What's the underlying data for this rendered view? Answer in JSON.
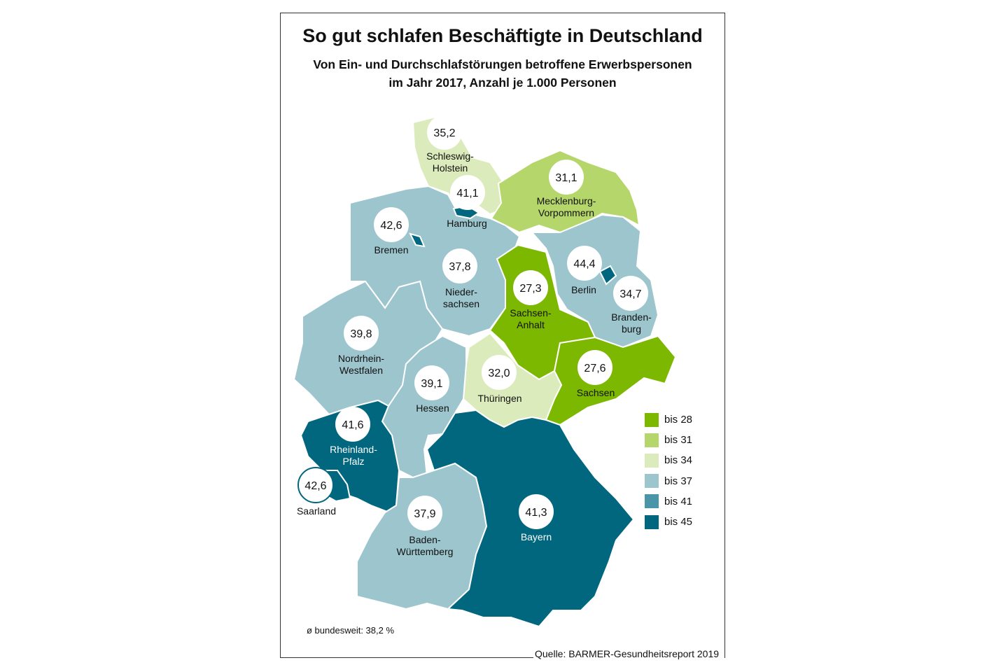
{
  "title": "So gut schlafen Beschäftigte in Deutschland",
  "subtitle_line1": "Von Ein- und Durchschlafstörungen betroffene Erwerbspersonen",
  "subtitle_line2": "im Jahr 2017, Anzahl je 1.000 Personen",
  "colors": {
    "bis28": "#7db800",
    "bis31": "#b4d66a",
    "bis34": "#dcebbb",
    "bis37": "#9cc5cd",
    "bis41": "#4a95a8",
    "bis45": "#00677f"
  },
  "legend": [
    {
      "label": "bis 28",
      "color": "#7db800"
    },
    {
      "label": "bis 31",
      "color": "#b4d66a"
    },
    {
      "label": "bis 34",
      "color": "#dcebbb"
    },
    {
      "label": "bis 37",
      "color": "#9cc5cd"
    },
    {
      "label": "bis 41",
      "color": "#4a95a8"
    },
    {
      "label": "bis 45",
      "color": "#00677f"
    }
  ],
  "states": [
    {
      "name": "Schleswig-Holstein",
      "label": [
        "Schleswig-",
        "Holstein"
      ],
      "value": "35,2"
    },
    {
      "name": "Hamburg",
      "label": [
        "Hamburg"
      ],
      "value": "41,1"
    },
    {
      "name": "Mecklenburg-Vorpommern",
      "label": [
        "Mecklenburg-",
        "Vorpommern"
      ],
      "value": "31,1"
    },
    {
      "name": "Bremen",
      "label": [
        "Bremen"
      ],
      "value": "42,6"
    },
    {
      "name": "Niedersachsen",
      "label": [
        "Nieder-",
        "sachsen"
      ],
      "value": "37,8"
    },
    {
      "name": "Berlin",
      "label": [
        "Berlin"
      ],
      "value": "44,4"
    },
    {
      "name": "Sachsen-Anhalt",
      "label": [
        "Sachsen-",
        "Anhalt"
      ],
      "value": "27,3"
    },
    {
      "name": "Brandenburg",
      "label": [
        "Branden-",
        "burg"
      ],
      "value": "34,7"
    },
    {
      "name": "Nordrhein-Westfalen",
      "label": [
        "Nordrhein-",
        "Westfalen"
      ],
      "value": "39,8"
    },
    {
      "name": "Hessen",
      "label": [
        "Hessen"
      ],
      "value": "39,1"
    },
    {
      "name": "Thüringen",
      "label": [
        "Thüringen"
      ],
      "value": "32,0"
    },
    {
      "name": "Sachsen",
      "label": [
        "Sachsen"
      ],
      "value": "27,6"
    },
    {
      "name": "Rheinland-Pfalz",
      "label": [
        "Rheinland-",
        "Pfalz"
      ],
      "value": "41,6"
    },
    {
      "name": "Saarland",
      "label": [
        "Saarland"
      ],
      "value": "42,6"
    },
    {
      "name": "Baden-Württemberg",
      "label": [
        "Baden-",
        "Württemberg"
      ],
      "value": "37,9"
    },
    {
      "name": "Bayern",
      "label": [
        "Bayern"
      ],
      "value": "41,3"
    }
  ],
  "average": "ø bundesweit: 38,2 %",
  "source": "Quelle: BARMER-Gesundheitsreport 2019"
}
